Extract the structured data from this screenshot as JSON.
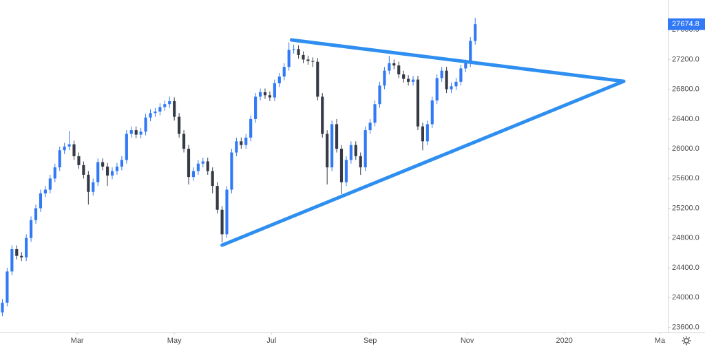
{
  "chart_data": {
    "type": "candlestick",
    "x": [
      12,
      15,
      18,
      21,
      24,
      27,
      30,
      33,
      36,
      39,
      42,
      45,
      48,
      51,
      54,
      57,
      60,
      63,
      66,
      69,
      72,
      75,
      78,
      81,
      84,
      87,
      90,
      93,
      96,
      99,
      102,
      105,
      108,
      111,
      114,
      117,
      120,
      123,
      126,
      129,
      132,
      135,
      138,
      141,
      144,
      147,
      150,
      153,
      156,
      159,
      162,
      165,
      168,
      171,
      174,
      177,
      180,
      183,
      186,
      189,
      192,
      195,
      198,
      201,
      204,
      207,
      210,
      213,
      216,
      219,
      222,
      225,
      228,
      231,
      234,
      237,
      240,
      243,
      246,
      249,
      252,
      255,
      258,
      261,
      264,
      267,
      270,
      273,
      276,
      279,
      282,
      285,
      288,
      291,
      294,
      297,
      300,
      303,
      306,
      309
    ],
    "open": [
      23800,
      23930,
      24350,
      24650,
      24560,
      24540,
      24800,
      25040,
      25200,
      25400,
      25450,
      25600,
      25750,
      25980,
      26030,
      26060,
      25900,
      25780,
      25650,
      25420,
      25550,
      25820,
      25760,
      25640,
      25700,
      25760,
      25850,
      26200,
      26250,
      26190,
      26230,
      26420,
      26480,
      26500,
      26560,
      26600,
      26640,
      26430,
      26200,
      26000,
      25620,
      25700,
      25800,
      25830,
      25700,
      25500,
      25180,
      24850,
      25450,
      25950,
      26100,
      26050,
      26150,
      26400,
      26700,
      26760,
      26720,
      26690,
      26880,
      26970,
      27100,
      27330,
      27340,
      27260,
      27200,
      27180,
      27170,
      26700,
      26200,
      25750,
      26330,
      26000,
      25550,
      25850,
      26050,
      25900,
      25750,
      26250,
      26350,
      26600,
      26850,
      27050,
      27150,
      27120,
      27000,
      26940,
      26900,
      26930,
      26300,
      26100,
      26330,
      26650,
      26950,
      27050,
      26800,
      26840,
      26900,
      27080,
      27150,
      27450
    ],
    "high": [
      23980,
      24400,
      24700,
      24700,
      24610,
      24850,
      25090,
      25250,
      25450,
      25500,
      25650,
      25800,
      26030,
      26080,
      26240,
      26110,
      25950,
      25830,
      25700,
      25600,
      25870,
      25870,
      25810,
      25750,
      25810,
      25900,
      26250,
      26300,
      26300,
      26280,
      26470,
      26530,
      26550,
      26610,
      26650,
      26700,
      26690,
      26480,
      26250,
      26050,
      25750,
      25850,
      25880,
      25880,
      25750,
      25550,
      25230,
      25500,
      26000,
      26150,
      26150,
      26200,
      26450,
      26750,
      26810,
      26810,
      26770,
      26930,
      27020,
      27150,
      27430,
      27400,
      27390,
      27310,
      27250,
      27230,
      27220,
      26750,
      26250,
      26380,
      26400,
      26050,
      25900,
      26100,
      26100,
      25950,
      26300,
      26400,
      26650,
      26900,
      27100,
      27250,
      27200,
      27170,
      27050,
      26990,
      26980,
      26980,
      26350,
      26380,
      26700,
      27000,
      27100,
      27100,
      26890,
      26950,
      27130,
      27200,
      27500,
      27760
    ],
    "low": [
      23750,
      23880,
      24300,
      24510,
      24490,
      24490,
      24750,
      24990,
      25150,
      25350,
      25400,
      25550,
      25700,
      25930,
      25980,
      25850,
      25730,
      25600,
      25250,
      25370,
      25500,
      25710,
      25500,
      25590,
      25650,
      25710,
      25800,
      26150,
      26140,
      26140,
      26180,
      26370,
      26430,
      26450,
      26510,
      26550,
      26380,
      26150,
      25950,
      25520,
      25570,
      25650,
      25750,
      25650,
      25400,
      25130,
      24740,
      24800,
      25400,
      25900,
      26000,
      26000,
      26100,
      26350,
      26650,
      26670,
      26640,
      26640,
      26830,
      26920,
      27050,
      27280,
      27210,
      27150,
      27130,
      27100,
      26650,
      26150,
      25520,
      25700,
      25950,
      25390,
      25500,
      25800,
      25850,
      25650,
      25700,
      26200,
      26300,
      26550,
      26800,
      27000,
      27070,
      26950,
      26890,
      26850,
      26850,
      26250,
      25980,
      26050,
      26280,
      26600,
      26900,
      26750,
      26750,
      26790,
      26850,
      27030,
      27100,
      27400
    ],
    "close": [
      23930,
      24350,
      24650,
      24560,
      24540,
      24800,
      25040,
      25200,
      25400,
      25450,
      25600,
      25750,
      25980,
      26030,
      26060,
      25900,
      25780,
      25650,
      25420,
      25550,
      25820,
      25760,
      25640,
      25700,
      25760,
      25850,
      26200,
      26250,
      26190,
      26230,
      26420,
      26480,
      26500,
      26560,
      26600,
      26640,
      26430,
      26200,
      26000,
      25620,
      25700,
      25800,
      25830,
      25700,
      25500,
      25180,
      24850,
      25450,
      25950,
      26100,
      26050,
      26150,
      26400,
      26700,
      26760,
      26720,
      26690,
      26880,
      26970,
      27100,
      27330,
      27340,
      27260,
      27200,
      27180,
      27170,
      26700,
      26200,
      25750,
      26330,
      26000,
      25550,
      25850,
      26050,
      25900,
      25750,
      26250,
      26350,
      26600,
      26850,
      27050,
      27150,
      27120,
      27000,
      26940,
      26900,
      26930,
      26300,
      26100,
      26330,
      26650,
      26950,
      27050,
      26800,
      26840,
      26900,
      27080,
      27150,
      27450,
      27674.8
    ],
    "up_color": "#3179f5",
    "down_color": "#363a45",
    "xlim": [
      10.5,
      430
    ],
    "xticks": [
      {
        "value": 59,
        "label": "Mar"
      },
      {
        "value": 120,
        "label": "May"
      },
      {
        "value": 181,
        "label": "Jul"
      },
      {
        "value": 243,
        "label": "Sep"
      },
      {
        "value": 304,
        "label": "Nov"
      },
      {
        "value": 365,
        "label": "2020"
      },
      {
        "value": 425,
        "label": "Ma"
      }
    ],
    "ylim": [
      23530,
      28000
    ],
    "yticks": [
      {
        "value": 23600,
        "label": "23600.0"
      },
      {
        "value": 24000,
        "label": "24000.0"
      },
      {
        "value": 24400,
        "label": "24400.0"
      },
      {
        "value": 24800,
        "label": "24800.0"
      },
      {
        "value": 25200,
        "label": "25200.0"
      },
      {
        "value": 25600,
        "label": "25600.0"
      },
      {
        "value": 26000,
        "label": "26000.0"
      },
      {
        "value": 26400,
        "label": "26400.0"
      },
      {
        "value": 26800,
        "label": "26800.0"
      },
      {
        "value": 27200,
        "label": "27200.0"
      },
      {
        "value": 27600,
        "label": "27600.0"
      }
    ],
    "grid": false,
    "last_price": 27674.8,
    "trendline_color": "#2e8ff0",
    "trendlines": [
      {
        "x": [
          193.6,
          402.3
        ],
        "y": [
          27463,
          26907
        ]
      },
      {
        "x": [
          150,
          402.3
        ],
        "y": [
          24704,
          26907
        ]
      }
    ]
  }
}
